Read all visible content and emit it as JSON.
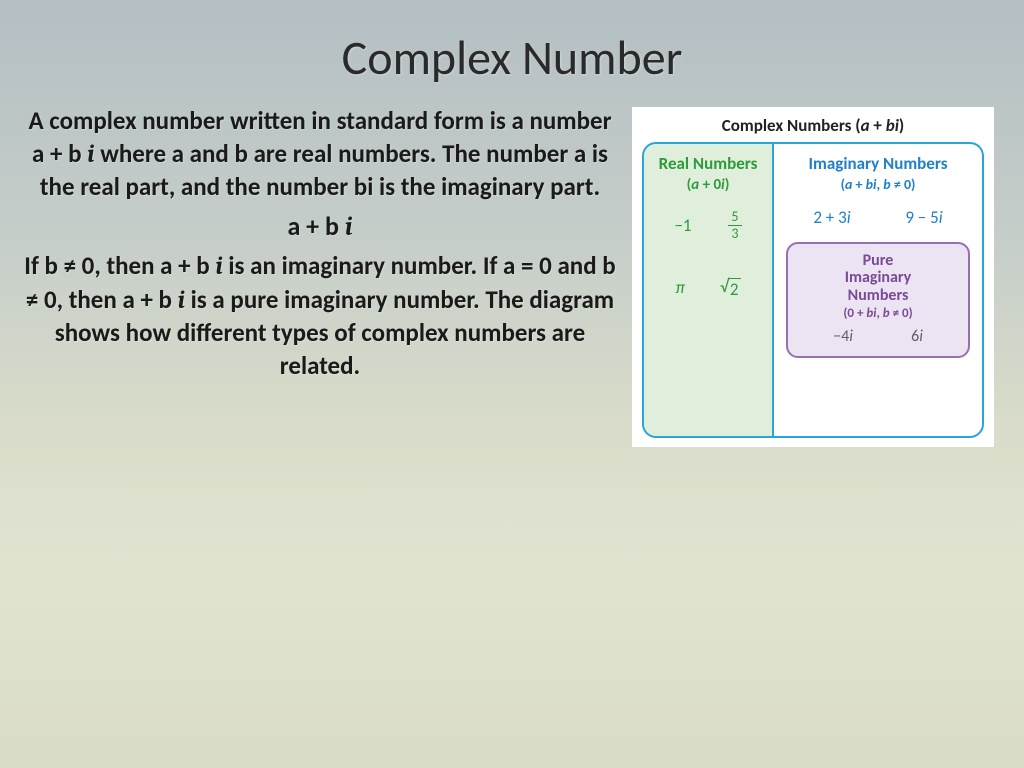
{
  "title": "Complex Number",
  "body": {
    "p1_a": "A complex number written in standard form is a number a + b ",
    "p1_i": "i",
    "p1_b": " where a and b are real numbers. The number a is the real part, and the number bi is the imaginary part.",
    "formula_a": "a + b ",
    "formula_i": "i",
    "p2_a": "If b ≠ 0, then a + b ",
    "p2_i1": "i",
    "p2_b": " is an imaginary number. If a = 0 and b ≠ 0, then a + b ",
    "p2_i2": "i",
    "p2_c": " is a pure imaginary number. The diagram shows how different types of complex numbers are related."
  },
  "diagram": {
    "title_pre": "Complex Numbers (",
    "title_a": "a",
    "title_plus": " + ",
    "title_b": "b",
    "title_i": "i",
    "title_post": ")",
    "real": {
      "title": "Real Numbers",
      "sub_pre": "(",
      "sub_a": "a",
      "sub_post": " + 0",
      "sub_i": "i",
      "sub_close": ")",
      "ex_neg1": "−1",
      "frac_top": "5",
      "frac_bot": "3",
      "ex_pi": "π",
      "sqrt_arg": "2"
    },
    "imag": {
      "title": "Imaginary Numbers",
      "sub_pre": "(",
      "sub_a": "a",
      "sub_mid1": " + ",
      "sub_b": "b",
      "sub_i": "i",
      "sub_comma": ", ",
      "sub_b2": "b",
      "sub_post": " ≠ 0)",
      "ex1_a": "2 + 3",
      "ex1_i": "i",
      "ex2_a": "9 − 5",
      "ex2_i": "i"
    },
    "pure": {
      "title_l1": "Pure",
      "title_l2": "Imaginary",
      "title_l3": "Numbers",
      "sub_pre": "(0 + ",
      "sub_b": "b",
      "sub_i": "i",
      "sub_comma": ", ",
      "sub_b2": "b",
      "sub_post": " ≠ 0)",
      "ex1_a": "−4",
      "ex1_i": "i",
      "ex2_a": "6",
      "ex2_i": "i"
    },
    "colors": {
      "outer_border": "#2aa5d8",
      "real_bg": "#e0efdc",
      "real_text": "#2e9a3a",
      "imag_text": "#2080c8",
      "pure_border": "#9a6fb0",
      "pure_bg": "#ece4f2",
      "pure_text": "#7a4a95",
      "pure_example_text": "#606060",
      "diagram_bg": "#ffffff"
    }
  }
}
